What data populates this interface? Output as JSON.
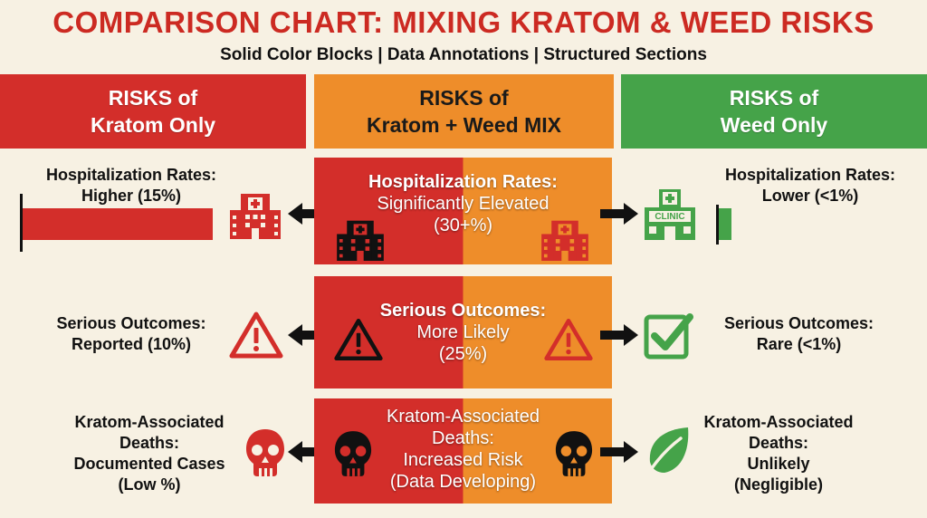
{
  "title": "COMPARISON CHART: MIXING KRATOM & WEED RISKS",
  "subtitle": "Solid Color Blocks | Data Annotations | Structured Sections",
  "columns": {
    "left": {
      "line1": "RISKS of",
      "line2": "Kratom Only"
    },
    "middle": {
      "line1": "RISKS of",
      "line2": "Kratom + Weed MIX"
    },
    "right": {
      "line1": "RISKS of",
      "line2": "Weed Only"
    }
  },
  "hospitalization": {
    "left": {
      "label": "Hospitalization Rates:",
      "value": "Higher (15%)",
      "percent": 15
    },
    "middle": {
      "label": "Hospitalization Rates:",
      "value_line1": "Significantly Elevated",
      "value_line2": "(30+%)"
    },
    "right": {
      "label": "Hospitalization Rates:",
      "value": "Lower (<1%)",
      "percent": 1
    },
    "clinic_sign": "CLINIC"
  },
  "serious_outcomes": {
    "left": {
      "label": "Serious Outcomes:",
      "value": "Reported (10%)"
    },
    "middle": {
      "label": "Serious Outcomes:",
      "value_line1": "More Likely",
      "value_line2": "(25%)"
    },
    "right": {
      "label": "Serious Outcomes:",
      "value": "Rare (<1%)"
    }
  },
  "deaths": {
    "left": {
      "line1": "Kratom-Associated",
      "line2": "Deaths:",
      "line3": "Documented Cases",
      "line4": "(Low %)"
    },
    "middle": {
      "line1": "Kratom-Associated",
      "line2": "Deaths:",
      "line3": "Increased Risk",
      "line4": "(Data Developing)"
    },
    "right": {
      "line1": "Kratom-Associated",
      "line2": "Deaths:",
      "line3": "Unlikely",
      "line4": "(Negligible)"
    }
  },
  "colors": {
    "red": "#d32e2a",
    "orange": "#ee8d2a",
    "green": "#45a349",
    "background": "#f7f1e3"
  }
}
